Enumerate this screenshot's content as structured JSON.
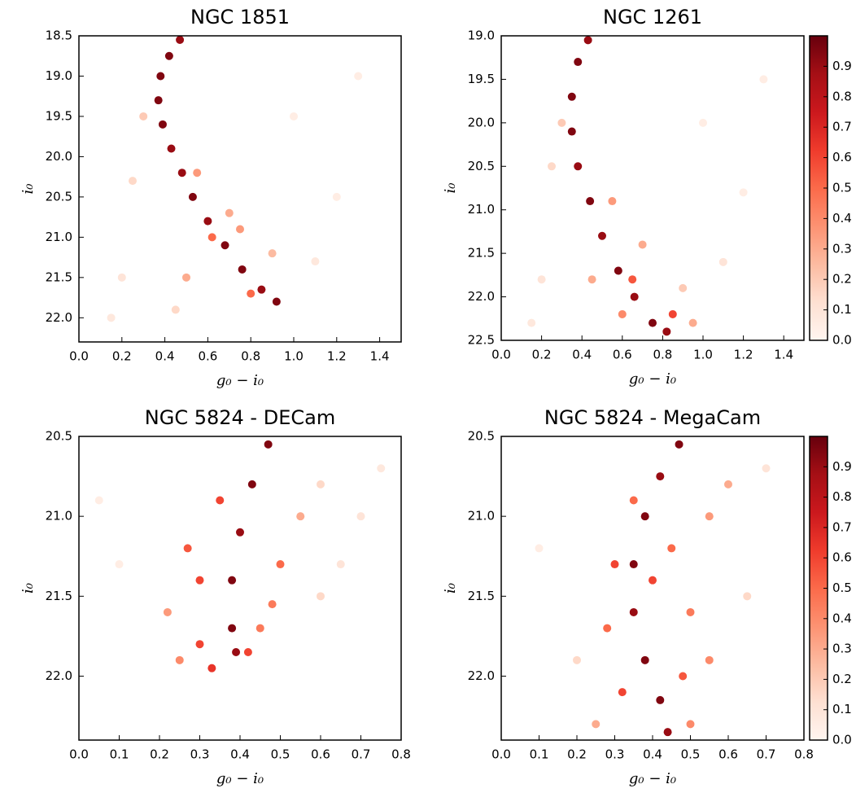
{
  "chart_data": [
    {
      "type": "scatter",
      "title": "NGC 1851",
      "xlabel": "g₀ − i₀",
      "ylabel": "i₀",
      "xlim": [
        0,
        1.5
      ],
      "ylim": [
        22.3,
        18.5
      ],
      "xticks": [
        {
          "value": 0,
          "label": "0.0"
        },
        0.2,
        0.4,
        0.6,
        0.8,
        {
          "value": 1,
          "label": "1.0"
        },
        1.2,
        1.4
      ],
      "yticks": [
        18.5,
        {
          "value": 19,
          "label": "19.0"
        },
        19.5,
        {
          "value": 20,
          "label": "20.0"
        },
        20.5,
        {
          "value": 21,
          "label": "21.0"
        },
        21.5,
        {
          "value": 22,
          "label": "22.0"
        }
      ],
      "colormap": "Reds",
      "clim": [
        0,
        1
      ],
      "series": [
        {
          "x": [
            0.47,
            0.42,
            0.38,
            0.37,
            0.39,
            0.43,
            0.48,
            0.53,
            0.6,
            0.68,
            0.76,
            0.85,
            0.92,
            0.3,
            0.55,
            0.7,
            0.9,
            0.5,
            1.0,
            1.2,
            0.2,
            0.25,
            0.8,
            0.62,
            1.3,
            0.15,
            1.1,
            0.45,
            0.75
          ],
          "y": [
            18.55,
            18.75,
            19.0,
            19.3,
            19.6,
            19.9,
            20.2,
            20.5,
            20.8,
            21.1,
            21.4,
            21.65,
            21.8,
            19.5,
            20.2,
            20.7,
            21.2,
            21.5,
            19.5,
            20.5,
            21.5,
            20.3,
            21.7,
            21.0,
            19.0,
            22.0,
            21.3,
            21.9,
            20.9
          ],
          "c": [
            0.9,
            0.95,
            0.95,
            0.95,
            0.95,
            0.9,
            0.9,
            0.95,
            0.9,
            0.95,
            0.95,
            0.9,
            0.95,
            0.2,
            0.35,
            0.3,
            0.25,
            0.3,
            0.05,
            0.05,
            0.1,
            0.15,
            0.5,
            0.5,
            0.05,
            0.08,
            0.08,
            0.15,
            0.35
          ]
        }
      ]
    },
    {
      "type": "scatter",
      "title": "NGC 1261",
      "xlabel": "g₀ − i₀",
      "ylabel": "i₀",
      "xlim": [
        0,
        1.5
      ],
      "ylim": [
        22.5,
        19.0
      ],
      "xticks": [
        {
          "value": 0,
          "label": "0.0"
        },
        0.2,
        0.4,
        0.6,
        0.8,
        {
          "value": 1,
          "label": "1.0"
        },
        1.2,
        1.4
      ],
      "yticks": [
        {
          "value": 19,
          "label": "19.0"
        },
        19.5,
        {
          "value": 20,
          "label": "20.0"
        },
        20.5,
        {
          "value": 21,
          "label": "21.0"
        },
        21.5,
        {
          "value": 22,
          "label": "22.0"
        },
        22.5
      ],
      "colormap": "Reds",
      "clim": [
        0,
        1
      ],
      "colorbar": true,
      "cticks": [
        {
          "value": 0,
          "label": "0.0"
        },
        0.1,
        0.2,
        0.3,
        0.4,
        0.5,
        0.6,
        0.7,
        0.8,
        0.9
      ],
      "series": [
        {
          "x": [
            0.43,
            0.38,
            0.35,
            0.35,
            0.38,
            0.44,
            0.5,
            0.58,
            0.66,
            0.75,
            0.82,
            0.3,
            0.55,
            0.7,
            0.9,
            0.45,
            1.0,
            1.2,
            0.2,
            0.25,
            0.85,
            0.65,
            1.3,
            0.15,
            1.1,
            0.6,
            0.95
          ],
          "y": [
            19.05,
            19.3,
            19.7,
            20.1,
            20.5,
            20.9,
            21.3,
            21.7,
            22.0,
            22.3,
            22.4,
            20.0,
            20.9,
            21.4,
            21.9,
            21.8,
            20.0,
            20.8,
            21.8,
            20.5,
            22.2,
            21.8,
            19.5,
            22.3,
            21.6,
            22.2,
            22.3
          ],
          "c": [
            0.9,
            0.95,
            0.95,
            0.95,
            0.9,
            0.95,
            0.9,
            0.95,
            0.9,
            0.95,
            0.9,
            0.2,
            0.35,
            0.3,
            0.2,
            0.3,
            0.05,
            0.05,
            0.1,
            0.15,
            0.6,
            0.55,
            0.05,
            0.08,
            0.1,
            0.4,
            0.3
          ]
        }
      ]
    },
    {
      "type": "scatter",
      "title": "NGC 5824 - DECam",
      "xlabel": "g₀ − i₀",
      "ylabel": "i₀",
      "xlim": [
        0,
        0.8
      ],
      "ylim": [
        22.4,
        20.5
      ],
      "xticks": [
        {
          "value": 0,
          "label": "0.0"
        },
        0.1,
        0.2,
        0.3,
        0.4,
        0.5,
        0.6,
        0.7,
        0.8
      ],
      "yticks": [
        20.5,
        {
          "value": 21,
          "label": "21.0"
        },
        21.5,
        {
          "value": 22,
          "label": "22.0"
        }
      ],
      "colormap": "Reds",
      "clim": [
        0,
        1
      ],
      "series": [
        {
          "x": [
            0.47,
            0.43,
            0.4,
            0.38,
            0.38,
            0.39,
            0.3,
            0.3,
            0.5,
            0.55,
            0.6,
            0.7,
            0.25,
            0.45,
            0.35,
            0.1,
            0.6,
            0.27,
            0.33,
            0.42,
            0.48,
            0.22,
            0.75,
            0.65,
            0.05
          ],
          "y": [
            20.55,
            20.8,
            21.1,
            21.4,
            21.7,
            21.85,
            21.4,
            21.8,
            21.3,
            21.0,
            20.8,
            21.0,
            21.9,
            21.7,
            20.9,
            21.3,
            21.5,
            21.2,
            21.95,
            21.85,
            21.55,
            21.6,
            20.7,
            21.3,
            20.9
          ],
          "c": [
            0.95,
            0.95,
            0.9,
            0.95,
            0.95,
            0.9,
            0.6,
            0.6,
            0.5,
            0.3,
            0.15,
            0.1,
            0.4,
            0.45,
            0.6,
            0.05,
            0.15,
            0.55,
            0.65,
            0.6,
            0.45,
            0.35,
            0.08,
            0.1,
            0.05
          ]
        }
      ]
    },
    {
      "type": "scatter",
      "title": "NGC 5824 - MegaCam",
      "xlabel": "g₀ − i₀",
      "ylabel": "i₀",
      "xlim": [
        0,
        0.8
      ],
      "ylim": [
        22.4,
        20.5
      ],
      "xticks": [
        {
          "value": 0,
          "label": "0.0"
        },
        0.1,
        0.2,
        0.3,
        0.4,
        0.5,
        0.6,
        0.7,
        0.8
      ],
      "yticks": [
        20.5,
        {
          "value": 21,
          "label": "21.0"
        },
        21.5,
        {
          "value": 22,
          "label": "22.0"
        }
      ],
      "colormap": "Reds",
      "clim": [
        0,
        1
      ],
      "colorbar": true,
      "cticks": [
        {
          "value": 0,
          "label": "0.0"
        },
        0.1,
        0.2,
        0.3,
        0.4,
        0.5,
        0.6,
        0.7,
        0.8,
        0.9
      ],
      "series": [
        {
          "x": [
            0.47,
            0.42,
            0.38,
            0.35,
            0.35,
            0.38,
            0.42,
            0.44,
            0.3,
            0.28,
            0.45,
            0.5,
            0.55,
            0.6,
            0.32,
            0.48,
            0.25,
            0.35,
            0.5,
            0.65,
            0.1,
            0.7,
            0.2,
            0.4,
            0.55
          ],
          "y": [
            20.55,
            20.75,
            21.0,
            21.3,
            21.6,
            21.9,
            22.15,
            22.35,
            21.3,
            21.7,
            21.2,
            21.6,
            21.0,
            20.8,
            22.1,
            22.0,
            22.3,
            20.9,
            22.3,
            21.5,
            21.2,
            20.7,
            21.9,
            21.4,
            21.9
          ],
          "c": [
            0.95,
            0.9,
            0.95,
            0.95,
            0.9,
            0.95,
            0.95,
            0.9,
            0.6,
            0.5,
            0.5,
            0.45,
            0.35,
            0.3,
            0.6,
            0.55,
            0.3,
            0.5,
            0.4,
            0.15,
            0.05,
            0.1,
            0.15,
            0.6,
            0.4
          ]
        }
      ]
    }
  ]
}
